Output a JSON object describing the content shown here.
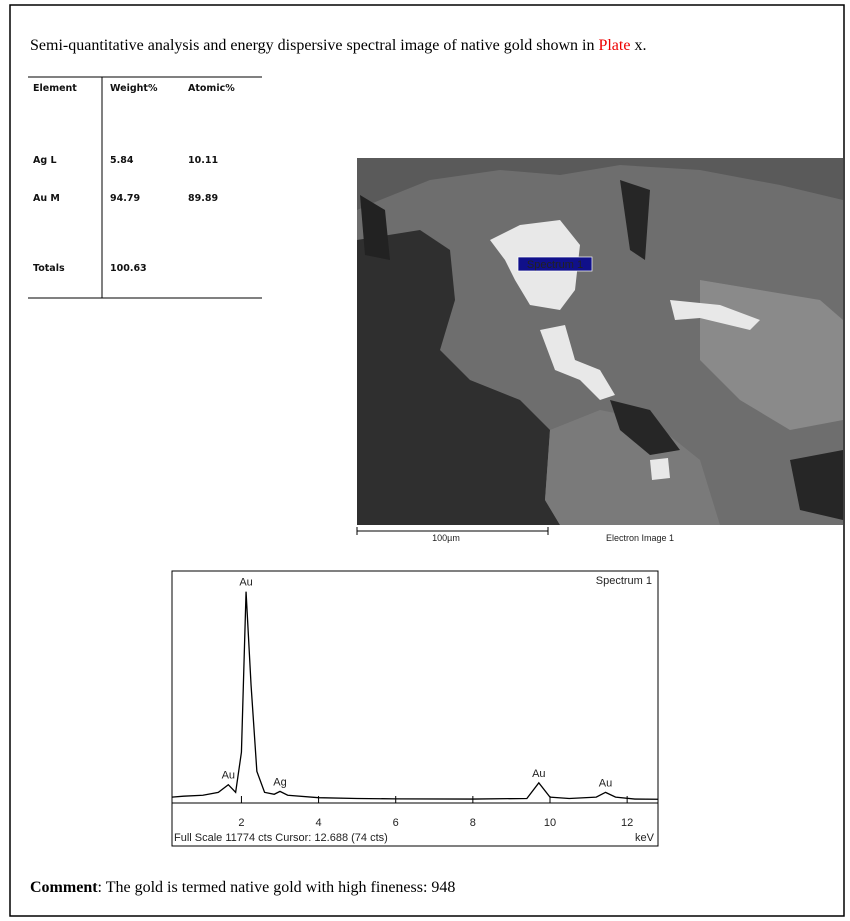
{
  "caption": {
    "text": "Semi-quantitative analysis and energy dispersive spectral image of native gold shown in ",
    "link": "Plate",
    "tail": " x."
  },
  "table": {
    "header": [
      "Element",
      "Weight%",
      "Atomic%"
    ],
    "rows": [
      [
        "Ag L",
        "5.84",
        "10.11"
      ],
      [
        "Au M",
        "94.79",
        "89.89"
      ],
      [
        "Totals",
        "100.63"
      ]
    ]
  },
  "image": {
    "label": "Spectrum 1",
    "scale_bar": "100µm",
    "caption": "Electron Image 1"
  },
  "chart_data": {
    "type": "line",
    "title": "Spectrum 1",
    "x_label": "keV",
    "footer": "Full Scale 11774 cts Cursor: 12.688  (74 cts)",
    "x": [
      0.2,
      0.5,
      1.0,
      1.4,
      1.66,
      1.85,
      2.0,
      2.12,
      2.25,
      2.4,
      2.6,
      2.85,
      3.0,
      3.2,
      4,
      5,
      6,
      8,
      9.4,
      9.71,
      10.0,
      10.5,
      11.2,
      11.44,
      11.7,
      12.2,
      12.8
    ],
    "values": [
      150,
      200,
      250,
      400,
      800,
      400,
      2500,
      10900,
      6000,
      1500,
      400,
      300,
      450,
      250,
      120,
      80,
      60,
      50,
      80,
      900,
      150,
      80,
      150,
      400,
      150,
      50,
      40
    ],
    "color": "#000000",
    "xlim": [
      0.2,
      12.8
    ],
    "ylim": [
      0,
      11774
    ],
    "xticks": [
      2,
      4,
      6,
      8,
      10,
      12
    ],
    "annotations": [
      {
        "text": "Au",
        "x": 2.12,
        "y": 10900
      },
      {
        "text": "Au",
        "x": 1.66,
        "y": 800
      },
      {
        "text": "Ag",
        "x": 3.0,
        "y": 450
      },
      {
        "text": "Au",
        "x": 9.71,
        "y": 900
      },
      {
        "text": "Au",
        "x": 11.44,
        "y": 400
      }
    ]
  },
  "comment": {
    "label": "Comment",
    "text": ": The gold is termed native gold with high fineness: 948"
  }
}
